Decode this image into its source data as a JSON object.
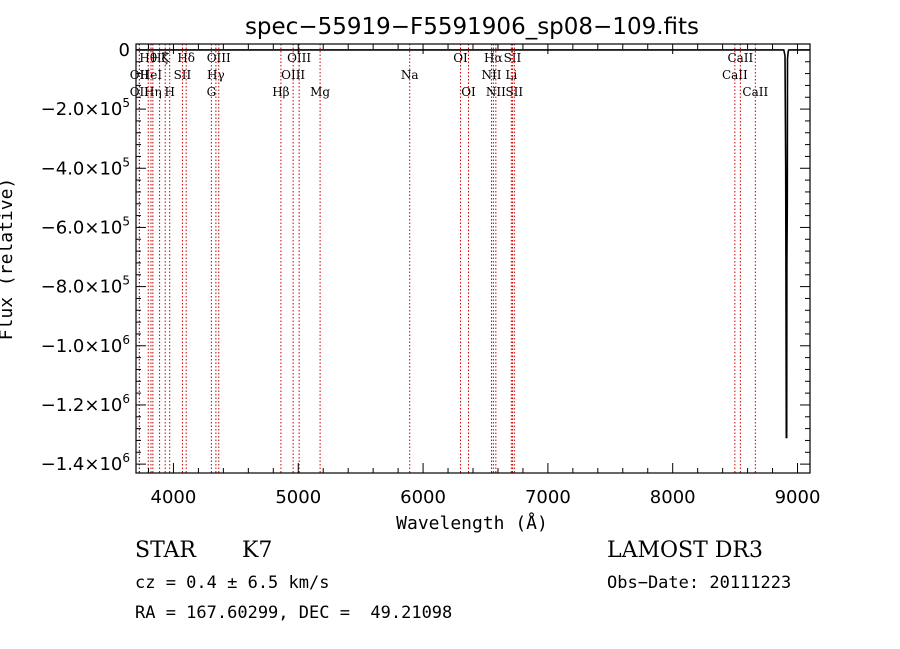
{
  "chart_data": {
    "type": "line",
    "title": "spec−55919−F5591906_sp08−109.fits",
    "xlabel": "Wavelength (Å)",
    "ylabel": "Flux (relative)",
    "xlim": [
      3700,
      9100
    ],
    "ylim": [
      -1430000,
      20000
    ],
    "xticks": [
      {
        "value": 4000,
        "label": "4000"
      },
      {
        "value": 5000,
        "label": "5000"
      },
      {
        "value": 6000,
        "label": "6000"
      },
      {
        "value": 7000,
        "label": "7000"
      },
      {
        "value": 8000,
        "label": "8000"
      },
      {
        "value": 9000,
        "label": "9000"
      }
    ],
    "yticks": [
      {
        "value": 0,
        "mantissa": "0",
        "exp": ""
      },
      {
        "value": -200000,
        "mantissa": "−2.0×10",
        "exp": "5"
      },
      {
        "value": -400000,
        "mantissa": "−4.0×10",
        "exp": "5"
      },
      {
        "value": -600000,
        "mantissa": "−6.0×10",
        "exp": "5"
      },
      {
        "value": -800000,
        "mantissa": "−8.0×10",
        "exp": "5"
      },
      {
        "value": -1000000,
        "mantissa": "−1.0×10",
        "exp": "6"
      },
      {
        "value": -1200000,
        "mantissa": "−1.2×10",
        "exp": "6"
      },
      {
        "value": -1400000,
        "mantissa": "−1.4×10",
        "exp": "6"
      }
    ],
    "series": [
      {
        "name": "flux",
        "x": [
          3700,
          4500,
          5500,
          6500,
          7500,
          8500,
          8890,
          8900,
          8905,
          8910,
          8913,
          8915,
          8918,
          8920,
          8925,
          8930,
          8940,
          9100
        ],
        "y": [
          0,
          0,
          0,
          0,
          0,
          0,
          0,
          -20000,
          -400000,
          -1310000,
          -1310000,
          -720000,
          -520000,
          -30000,
          -5000,
          0,
          0,
          0
        ]
      }
    ],
    "spectral_lines": [
      {
        "wave": 3727,
        "label": "OII",
        "row": 2
      },
      {
        "wave": 3727,
        "label": "OII",
        "row": 3
      },
      {
        "wave": 3798,
        "label": "Hθ",
        "row": 1
      },
      {
        "wave": 3820,
        "label": "HeI",
        "row": 2
      },
      {
        "wave": 3835,
        "label": "Hη",
        "row": 3
      },
      {
        "wave": 3889,
        "label": "Hζ",
        "row": 1
      },
      {
        "wave": 3934,
        "label": "K",
        "row": 1
      },
      {
        "wave": 3970,
        "label": "H",
        "row": 3
      },
      {
        "wave": 4072,
        "label": "SII",
        "row": 2
      },
      {
        "wave": 4102,
        "label": "Hδ",
        "row": 1
      },
      {
        "wave": 4304,
        "label": "G",
        "row": 3
      },
      {
        "wave": 4340,
        "label": "Hγ",
        "row": 2
      },
      {
        "wave": 4363,
        "label": "OIII",
        "row": 1
      },
      {
        "wave": 4861,
        "label": "Hβ",
        "row": 3
      },
      {
        "wave": 4959,
        "label": "OIII",
        "row": 2
      },
      {
        "wave": 5007,
        "label": "OIII",
        "row": 1
      },
      {
        "wave": 5175,
        "label": "Mg",
        "row": 3
      },
      {
        "wave": 5893,
        "label": "Na",
        "row": 2
      },
      {
        "wave": 6300,
        "label": "OI",
        "row": 1
      },
      {
        "wave": 6364,
        "label": "OI",
        "row": 3
      },
      {
        "wave": 6548,
        "label": "NII",
        "row": 2
      },
      {
        "wave": 6563,
        "label": "Hα",
        "row": 1
      },
      {
        "wave": 6583,
        "label": "NII",
        "row": 3
      },
      {
        "wave": 6707,
        "label": "Li",
        "row": 2
      },
      {
        "wave": 6716,
        "label": "SII",
        "row": 1
      },
      {
        "wave": 6731,
        "label": "SII",
        "row": 3
      },
      {
        "wave": 8498,
        "label": "CaII",
        "row": 2
      },
      {
        "wave": 8542,
        "label": "CaII",
        "row": 1
      },
      {
        "wave": 8662,
        "label": "CaII",
        "row": 3
      }
    ],
    "line_color": "#cc0000",
    "spectrum_color": "#000000"
  },
  "info": {
    "class": "STAR",
    "subclass": "K7",
    "survey": "LAMOST DR3",
    "cz": "cz = 0.4 ± 6.5 km/s",
    "obs_date": "Obs−Date: 20111223",
    "coords": "RA = 167.60299, DEC =  49.21098"
  }
}
